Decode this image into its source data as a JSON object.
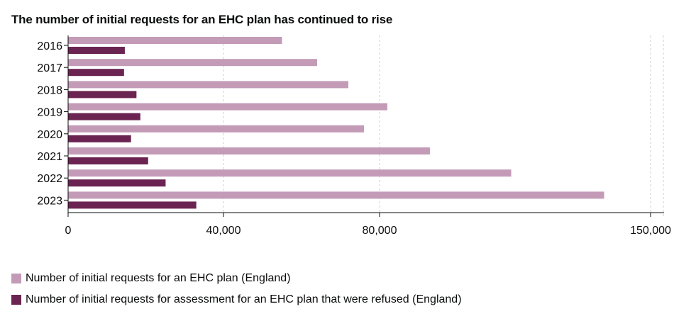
{
  "chart_data": {
    "type": "bar",
    "orientation": "horizontal",
    "title": "The number of initial requests for an EHC plan has continued to rise",
    "categories": [
      "2016",
      "2017",
      "2018",
      "2019",
      "2020",
      "2021",
      "2022",
      "2023"
    ],
    "series": [
      {
        "name": "Number of initial requests for an EHC plan (England)",
        "color": "#c39bb7",
        "values": [
          55000,
          64000,
          72000,
          82000,
          76000,
          93000,
          114000,
          138000
        ]
      },
      {
        "name": "Number of initial requests for assessment for an EHC plan that were refused (England)",
        "color": "#6b2451",
        "values": [
          14600,
          14400,
          17600,
          18600,
          16200,
          20600,
          25100,
          33000
        ]
      }
    ],
    "x_ticks": [
      {
        "value": 0,
        "label": "0"
      },
      {
        "value": 40000,
        "label": "40,000"
      },
      {
        "value": 80000,
        "label": "80,000"
      },
      {
        "value": 150000,
        "label": "150,000"
      }
    ],
    "xlim": [
      0,
      150000
    ],
    "grid": true,
    "legend_position": "bottom-left"
  }
}
